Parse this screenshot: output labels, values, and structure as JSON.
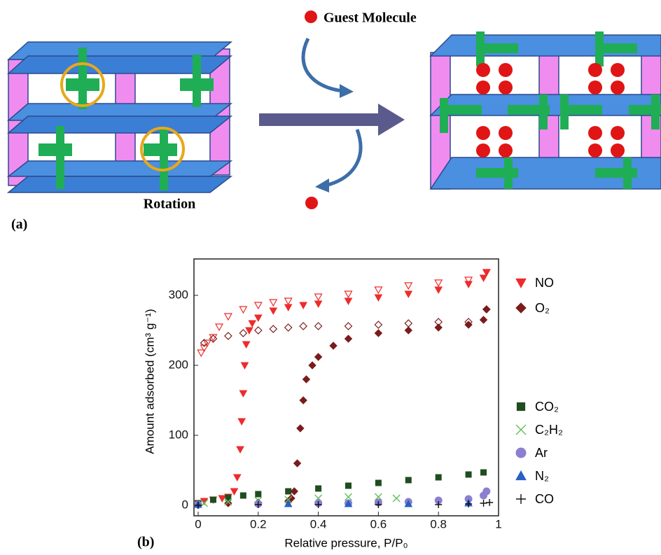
{
  "diagram": {
    "legend_label": "Guest Molecule",
    "caption": "Rotation",
    "panel_label": "(a)"
  },
  "panel_b_label": "(b)",
  "chart_data": {
    "type": "scatter",
    "xlabel": "Relative pressure, P/P₀",
    "ylabel": "Amount adsorbed (cm³ g⁻¹)",
    "xlim": [
      -0.014,
      1.0
    ],
    "xticks": [
      0,
      0.2,
      0.4,
      0.6,
      0.8,
      1
    ],
    "ylim": [
      -15,
      352
    ],
    "yticks": [
      0,
      100,
      200,
      300
    ],
    "grid": false,
    "series": [
      {
        "name": "NO",
        "color": "#ee2b2b",
        "marker": "triangle-down",
        "x": [
          0,
          0.02,
          0.05,
          0.08,
          0.1,
          0.12,
          0.13,
          0.14,
          0.145,
          0.15,
          0.155,
          0.16,
          0.17,
          0.18,
          0.2,
          0.25,
          0.3,
          0.35,
          0.4,
          0.5,
          0.6,
          0.7,
          0.8,
          0.9,
          0.95,
          0.96
        ],
        "values": [
          3,
          6,
          8,
          10,
          12,
          20,
          40,
          80,
          120,
          160,
          200,
          230,
          250,
          260,
          268,
          278,
          283,
          286,
          288,
          292,
          297,
          302,
          308,
          316,
          325,
          333
        ],
        "desorption": {
          "x": [
            0.96,
            0.9,
            0.8,
            0.7,
            0.6,
            0.5,
            0.4,
            0.3,
            0.25,
            0.2,
            0.15,
            0.1,
            0.07,
            0.05,
            0.03,
            0.02,
            0.01
          ],
          "values": [
            333,
            322,
            318,
            314,
            308,
            302,
            298,
            292,
            290,
            286,
            280,
            270,
            255,
            240,
            232,
            225,
            218
          ]
        }
      },
      {
        "name": "O₂",
        "color": "#7a1c1c",
        "marker": "diamond",
        "x": [
          0,
          0.1,
          0.2,
          0.3,
          0.31,
          0.32,
          0.33,
          0.34,
          0.35,
          0.36,
          0.38,
          0.4,
          0.45,
          0.5,
          0.6,
          0.7,
          0.8,
          0.9,
          0.95,
          0.96
        ],
        "values": [
          2,
          3,
          4,
          6,
          10,
          20,
          60,
          110,
          150,
          180,
          200,
          212,
          228,
          238,
          246,
          250,
          254,
          258,
          265,
          280
        ],
        "desorption": {
          "x": [
            0.96,
            0.9,
            0.8,
            0.7,
            0.6,
            0.5,
            0.4,
            0.35,
            0.3,
            0.25,
            0.2,
            0.15,
            0.1,
            0.05,
            0.02
          ],
          "values": [
            280,
            262,
            262,
            260,
            258,
            256,
            256,
            256,
            254,
            252,
            250,
            246,
            242,
            238,
            232
          ]
        }
      },
      {
        "name": "CO₂",
        "color": "#1f4d1f",
        "marker": "square",
        "x": [
          0,
          0.05,
          0.1,
          0.15,
          0.2,
          0.3,
          0.4,
          0.5,
          0.6,
          0.7,
          0.8,
          0.9,
          0.95
        ],
        "values": [
          3,
          8,
          11,
          14,
          16,
          20,
          24,
          28,
          32,
          36,
          40,
          44,
          47
        ]
      },
      {
        "name": "C₂H₂",
        "color": "#5fbf5a",
        "marker": "x",
        "x": [
          0.02,
          0.1,
          0.2,
          0.3,
          0.4,
          0.5,
          0.6,
          0.66
        ],
        "values": [
          3,
          5,
          7,
          8,
          10,
          12,
          12,
          10
        ]
      },
      {
        "name": "Ar",
        "color": "#8b7fd0",
        "marker": "circle",
        "x": [
          0,
          0.2,
          0.4,
          0.5,
          0.6,
          0.7,
          0.8,
          0.9,
          0.95,
          0.96
        ],
        "values": [
          1,
          2,
          3,
          3,
          4,
          5,
          7,
          9,
          14,
          20
        ]
      },
      {
        "name": "N₂",
        "color": "#2a5fc4",
        "marker": "triangle-up",
        "x": [
          0,
          0.3,
          0.5,
          0.7,
          0.9
        ],
        "values": [
          1,
          2,
          2,
          2,
          3
        ]
      },
      {
        "name": "CO",
        "color": "#111111",
        "marker": "plus",
        "x": [
          0,
          0.2,
          0.4,
          0.6,
          0.8,
          0.9,
          0.95,
          0.97
        ],
        "values": [
          0,
          1,
          1,
          1,
          1,
          2,
          3,
          4
        ]
      }
    ]
  }
}
